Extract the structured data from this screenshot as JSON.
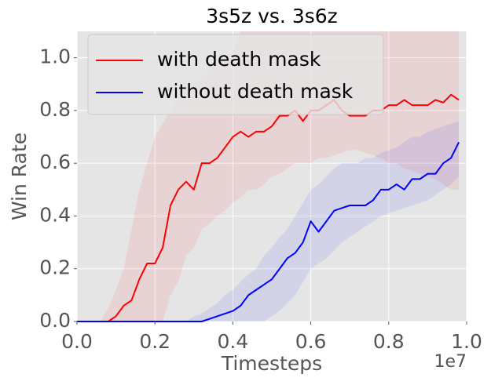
{
  "chart_data": {
    "type": "line",
    "title": "3s5z vs. 3s6z",
    "x_label": "Timesteps",
    "y_label": "Win Rate",
    "x_offset_label": "1e7",
    "xlim": [
      0,
      1.0
    ],
    "ylim": [
      0,
      1.1
    ],
    "xticks": [
      {
        "value": 0,
        "label": "0.0"
      },
      {
        "value": 0.2,
        "label": "0.2"
      },
      {
        "value": 0.4,
        "label": "0.4"
      },
      {
        "value": 0.6,
        "label": "0.6"
      },
      {
        "value": 0.8,
        "label": "0.8"
      },
      {
        "value": 1.0,
        "label": "1.0"
      }
    ],
    "yticks": [
      {
        "value": 0,
        "label": "0.0"
      },
      {
        "value": 0.2,
        "label": "0.2"
      },
      {
        "value": 0.4,
        "label": "0.4"
      },
      {
        "value": 0.6,
        "label": "0.6"
      },
      {
        "value": 0.8,
        "label": "0.8"
      },
      {
        "value": 1.0,
        "label": "1.0"
      }
    ],
    "grid": true,
    "legend_position": "upper-left",
    "x": [
      0,
      0.02,
      0.04,
      0.06,
      0.08,
      0.1,
      0.12,
      0.14,
      0.16,
      0.18,
      0.2,
      0.22,
      0.24,
      0.26,
      0.28,
      0.3,
      0.32,
      0.34,
      0.36,
      0.38,
      0.4,
      0.42,
      0.44,
      0.46,
      0.48,
      0.5,
      0.52,
      0.54,
      0.56,
      0.58,
      0.6,
      0.62,
      0.64,
      0.66,
      0.68,
      0.7,
      0.72,
      0.74,
      0.76,
      0.78,
      0.8,
      0.82,
      0.84,
      0.86,
      0.88,
      0.9,
      0.92,
      0.94,
      0.96,
      0.98
    ],
    "series": [
      {
        "name": "with death mask",
        "color": "#ff0000",
        "values": [
          0,
          0,
          0,
          0,
          0,
          0.02,
          0.06,
          0.08,
          0.16,
          0.22,
          0.22,
          0.28,
          0.44,
          0.5,
          0.53,
          0.5,
          0.6,
          0.6,
          0.62,
          0.66,
          0.7,
          0.72,
          0.7,
          0.72,
          0.72,
          0.74,
          0.78,
          0.78,
          0.8,
          0.76,
          0.8,
          0.8,
          0.82,
          0.84,
          0.8,
          0.78,
          0.78,
          0.78,
          0.8,
          0.8,
          0.82,
          0.82,
          0.84,
          0.82,
          0.82,
          0.82,
          0.84,
          0.83,
          0.86,
          0.84
        ],
        "lower": [
          0,
          0,
          0,
          0,
          0,
          0,
          0,
          0,
          0,
          0,
          0,
          0,
          0.1,
          0.15,
          0.25,
          0.28,
          0.35,
          0.37,
          0.4,
          0.42,
          0.45,
          0.47,
          0.5,
          0.5,
          0.52,
          0.55,
          0.56,
          0.58,
          0.6,
          0.6,
          0.6,
          0.62,
          0.62,
          0.63,
          0.64,
          0.65,
          0.65,
          0.64,
          0.63,
          0.62,
          0.6,
          0.6,
          0.58,
          0.57,
          0.56,
          0.55,
          0.54,
          0.52,
          0.5,
          0.5
        ],
        "upper": [
          0,
          0,
          0,
          0,
          0.05,
          0.12,
          0.2,
          0.35,
          0.5,
          0.6,
          0.7,
          0.75,
          0.8,
          0.85,
          0.88,
          0.9,
          0.92,
          0.95,
          0.98,
          1.0,
          1.02,
          1.1,
          1.1,
          1.1,
          1.1,
          1.1,
          1.1,
          1.1,
          1.1,
          1.1,
          1.1,
          1.1,
          1.1,
          1.1,
          1.1,
          1.1,
          1.1,
          1.1,
          1.1,
          1.1,
          1.1,
          1.1,
          1.1,
          1.1,
          1.1,
          1.1,
          1.1,
          1.1,
          1.1,
          1.1
        ]
      },
      {
        "name": "without death mask",
        "color": "#0000ff",
        "values": [
          0,
          0,
          0,
          0,
          0,
          0,
          0,
          0,
          0,
          0,
          0,
          0,
          0,
          0,
          0,
          0,
          0,
          0.01,
          0.02,
          0.03,
          0.04,
          0.06,
          0.1,
          0.12,
          0.14,
          0.16,
          0.2,
          0.24,
          0.26,
          0.3,
          0.38,
          0.34,
          0.38,
          0.42,
          0.43,
          0.44,
          0.44,
          0.44,
          0.46,
          0.5,
          0.5,
          0.52,
          0.5,
          0.54,
          0.54,
          0.56,
          0.56,
          0.6,
          0.62,
          0.68
        ],
        "lower": [
          0,
          0,
          0,
          0,
          0,
          0,
          0,
          0,
          0,
          0,
          0,
          0,
          0,
          0,
          0,
          0,
          0,
          0,
          0,
          0,
          0,
          0,
          0,
          0,
          0,
          0.02,
          0.04,
          0.07,
          0.1,
          0.15,
          0.2,
          0.22,
          0.24,
          0.27,
          0.3,
          0.32,
          0.34,
          0.36,
          0.38,
          0.4,
          0.41,
          0.42,
          0.43,
          0.44,
          0.45,
          0.46,
          0.48,
          0.5,
          0.52,
          0.55
        ],
        "upper": [
          0,
          0,
          0,
          0,
          0,
          0,
          0,
          0,
          0,
          0,
          0,
          0,
          0,
          0,
          0,
          0.02,
          0.03,
          0.05,
          0.07,
          0.1,
          0.12,
          0.15,
          0.18,
          0.2,
          0.25,
          0.28,
          0.32,
          0.35,
          0.4,
          0.45,
          0.5,
          0.52,
          0.55,
          0.58,
          0.6,
          0.6,
          0.6,
          0.62,
          0.62,
          0.64,
          0.65,
          0.66,
          0.68,
          0.7,
          0.7,
          0.72,
          0.73,
          0.74,
          0.75,
          0.76
        ]
      }
    ]
  }
}
